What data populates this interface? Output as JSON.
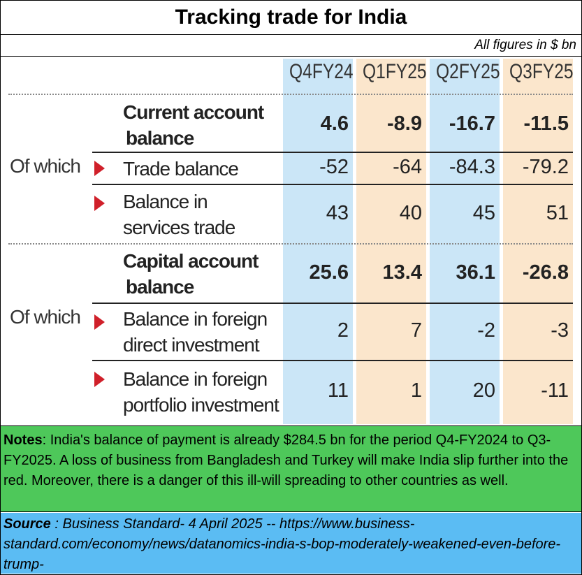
{
  "title": "Tracking trade for India",
  "units_note": "All figures in $ bn",
  "chart_data": {
    "type": "table",
    "columns": [
      "Q4FY24",
      "Q1FY25",
      "Q2FY25",
      "Q3FY25"
    ],
    "rows": [
      {
        "label": "Current account balance",
        "label_lines": [
          "Current account",
          "balance"
        ],
        "bold": true,
        "values": [
          "4.6",
          "-8.9",
          "-16.7",
          "-11.5"
        ]
      },
      {
        "label": "Trade balance",
        "label_lines": [
          "Trade balance"
        ],
        "group": "Of which",
        "values": [
          "-52",
          "-64",
          "-84.3",
          "-79.2"
        ]
      },
      {
        "label": "Balance in services trade",
        "label_lines": [
          "Balance in",
          "services trade"
        ],
        "values": [
          "43",
          "40",
          "45",
          "51"
        ]
      },
      {
        "label": "Capital account balance",
        "label_lines": [
          "Capital account",
          "balance"
        ],
        "bold": true,
        "values": [
          "25.6",
          "13.4",
          "36.1",
          "-26.8"
        ]
      },
      {
        "label": "Balance in foreign direct investment",
        "label_lines": [
          "Balance in foreign",
          "direct investment"
        ],
        "group": "Of which",
        "values": [
          "2",
          "7",
          "-2",
          "-3"
        ]
      },
      {
        "label": "Balance in foreign portfolio investment",
        "label_lines": [
          "Balance in foreign",
          "portfolio investment"
        ],
        "values": [
          "11",
          "1",
          "20",
          "-11"
        ]
      }
    ]
  },
  "notes": {
    "heading": "Notes",
    "text": ": India's balance of payment is already $284.5 bn for the period Q4-FY2024 to Q3-FY2025.  A loss of business from Bangladesh and Turkey will make India slip further into the red.  Moreover, there is a danger of this ill-will spreading to other countries as well."
  },
  "source": {
    "heading": "Source",
    "text": " : Business Standard- 4 April 2025 -- https://www.business-standard.com/economy/news/datanomics-india-s-bop-moderately-weakened-even-before-trump-"
  },
  "colors": {
    "blue_column": "#cbe6f7",
    "peach_column": "#fbe6cc",
    "arrow": "#d0202a",
    "notes_bg": "#4ec85a",
    "source_bg": "#5bbcf3"
  }
}
